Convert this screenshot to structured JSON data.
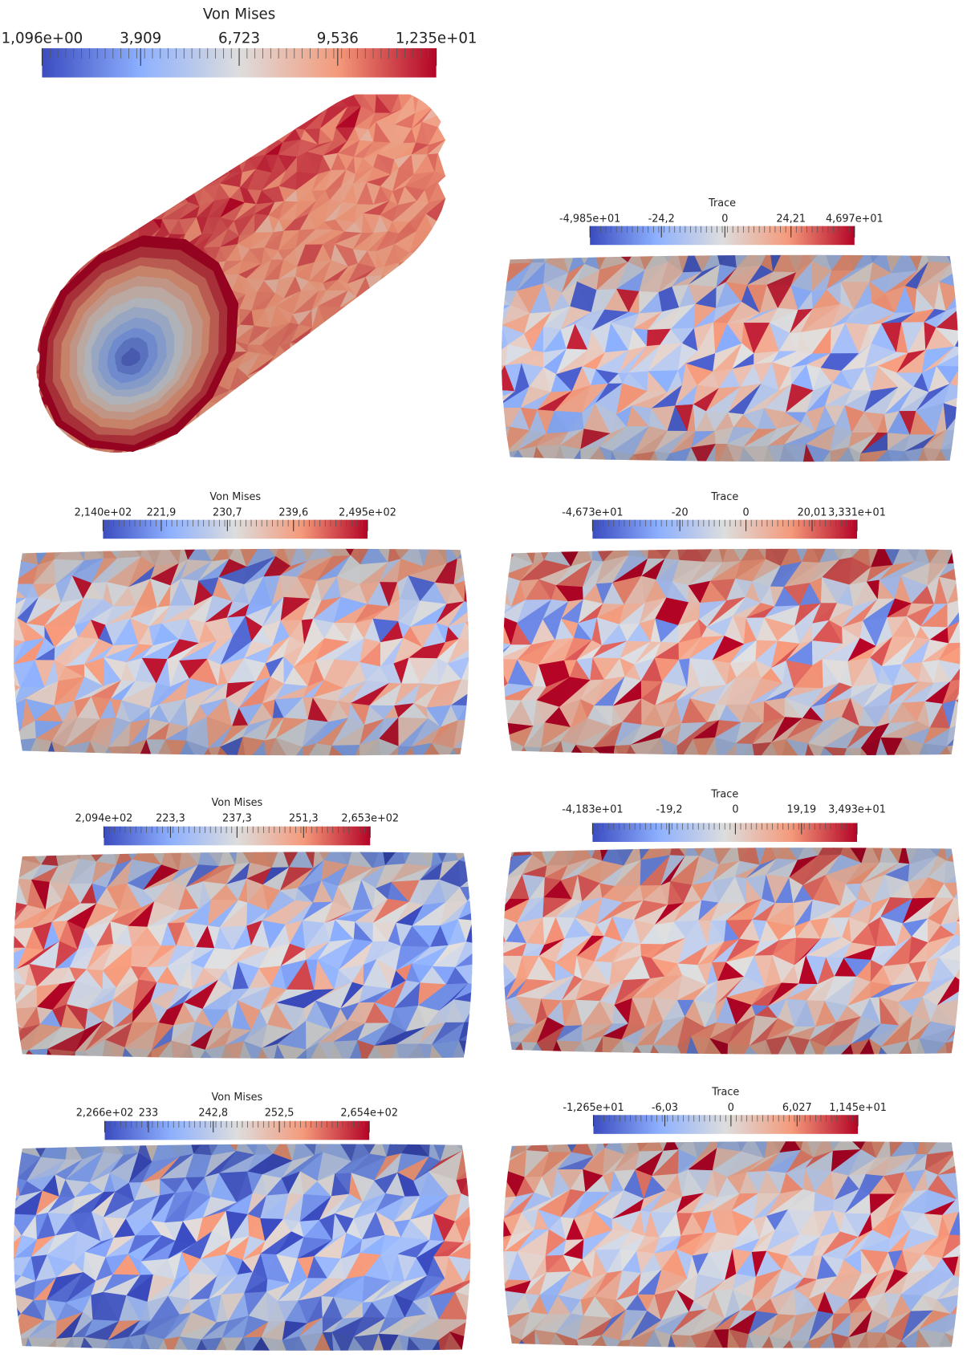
{
  "panels": [
    {
      "title": "Von Mises",
      "ticks": [
        "1,096e+00",
        "3,909",
        "6,723",
        "9,536",
        "1,235e+01"
      ]
    },
    {
      "title": "Trace",
      "ticks": [
        "-4,985e+01",
        "-24,2",
        "0",
        "24,21",
        "4,697e+01"
      ]
    },
    {
      "title": "Von Mises",
      "ticks": [
        "2,140e+02",
        "221,9",
        "230,7",
        "239,6",
        "2,495e+02"
      ]
    },
    {
      "title": "Trace",
      "ticks": [
        "-4,673e+01",
        "-20",
        "0",
        "20,01",
        "3,331e+01"
      ]
    },
    {
      "title": "Von Mises",
      "ticks": [
        "2,094e+02",
        "223,3",
        "237,3",
        "251,3",
        "2,653e+02"
      ]
    },
    {
      "title": "Trace",
      "ticks": [
        "-4,183e+01",
        "-19,2",
        "0",
        "19,19",
        "3,493e+01"
      ]
    },
    {
      "title": "Von Mises",
      "ticks": [
        "2,266e+02",
        "233",
        "242,8",
        "252,5",
        "2,654e+02"
      ]
    },
    {
      "title": "Trace",
      "ticks": [
        "-1,265e+01",
        "-6,03",
        "0",
        "6,027",
        "1,145e+01"
      ]
    }
  ]
}
